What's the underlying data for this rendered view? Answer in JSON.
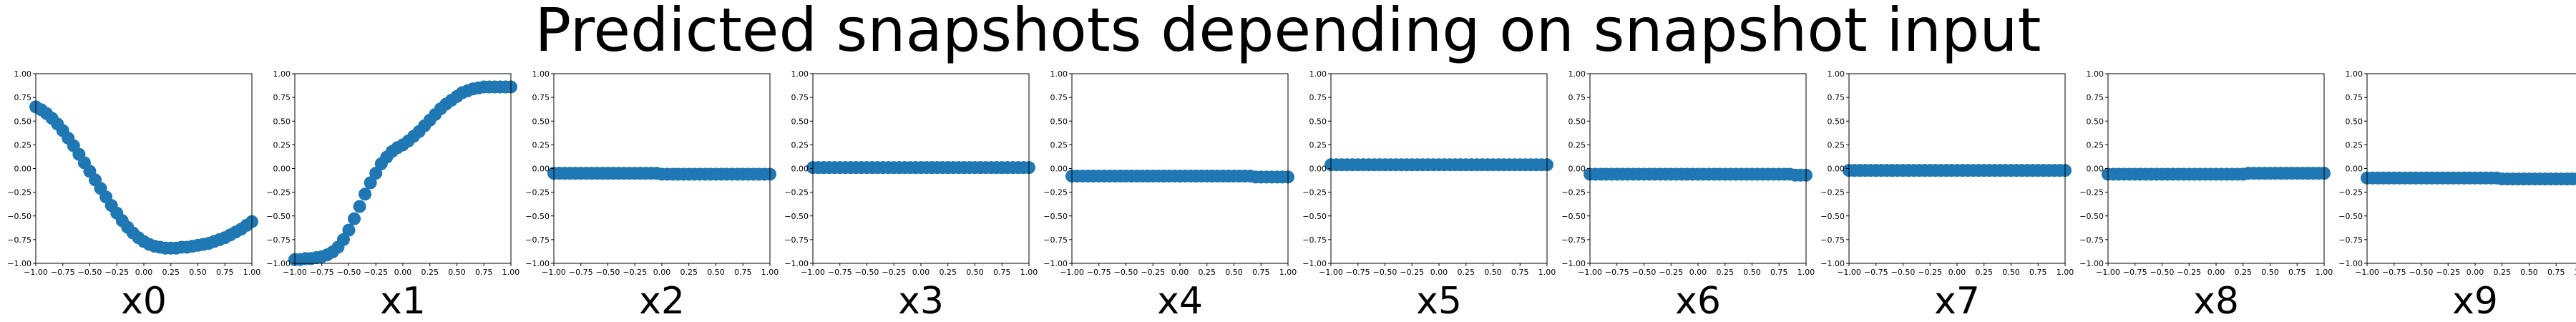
{
  "title": "Predicted snapshots depending on snapshot input",
  "chart_data": [
    {
      "type": "scatter",
      "xlabel": "x0",
      "xlim": [
        -1,
        1
      ],
      "ylim": [
        -1,
        1
      ],
      "marker_color": "#1f77b4",
      "x": [
        -1.0,
        -0.95,
        -0.9,
        -0.85,
        -0.8,
        -0.75,
        -0.7,
        -0.65,
        -0.6,
        -0.55,
        -0.5,
        -0.45,
        -0.4,
        -0.35,
        -0.3,
        -0.25,
        -0.2,
        -0.15,
        -0.1,
        -0.05,
        0.0,
        0.05,
        0.1,
        0.15,
        0.2,
        0.25,
        0.3,
        0.35,
        0.4,
        0.45,
        0.5,
        0.55,
        0.6,
        0.65,
        0.7,
        0.75,
        0.8,
        0.85,
        0.9,
        0.95,
        1.0
      ],
      "y": [
        0.65,
        0.62,
        0.58,
        0.53,
        0.47,
        0.4,
        0.32,
        0.24,
        0.15,
        0.06,
        -0.03,
        -0.12,
        -0.21,
        -0.3,
        -0.39,
        -0.47,
        -0.55,
        -0.62,
        -0.68,
        -0.73,
        -0.77,
        -0.8,
        -0.82,
        -0.83,
        -0.84,
        -0.84,
        -0.84,
        -0.83,
        -0.83,
        -0.82,
        -0.81,
        -0.8,
        -0.79,
        -0.77,
        -0.75,
        -0.73,
        -0.7,
        -0.67,
        -0.64,
        -0.6,
        -0.56
      ]
    },
    {
      "type": "scatter",
      "xlabel": "x1",
      "xlim": [
        -1,
        1
      ],
      "ylim": [
        -1,
        1
      ],
      "marker_color": "#1f77b4",
      "x": [
        -1.0,
        -0.95,
        -0.9,
        -0.85,
        -0.8,
        -0.75,
        -0.7,
        -0.65,
        -0.6,
        -0.55,
        -0.5,
        -0.45,
        -0.4,
        -0.35,
        -0.3,
        -0.25,
        -0.2,
        -0.15,
        -0.1,
        -0.05,
        0.0,
        0.05,
        0.1,
        0.15,
        0.2,
        0.25,
        0.3,
        0.35,
        0.4,
        0.45,
        0.5,
        0.55,
        0.6,
        0.65,
        0.7,
        0.75,
        0.8,
        0.85,
        0.9,
        0.95,
        1.0
      ],
      "y": [
        -0.96,
        -0.96,
        -0.95,
        -0.95,
        -0.94,
        -0.93,
        -0.91,
        -0.88,
        -0.83,
        -0.75,
        -0.65,
        -0.53,
        -0.4,
        -0.27,
        -0.15,
        -0.05,
        0.05,
        0.12,
        0.18,
        0.22,
        0.25,
        0.29,
        0.34,
        0.39,
        0.45,
        0.51,
        0.57,
        0.63,
        0.68,
        0.72,
        0.76,
        0.8,
        0.82,
        0.84,
        0.85,
        0.86,
        0.86,
        0.86,
        0.86,
        0.86,
        0.86
      ]
    },
    {
      "type": "scatter",
      "xlabel": "x2",
      "xlim": [
        -1,
        1
      ],
      "ylim": [
        -1,
        1
      ],
      "marker_color": "#1f77b4",
      "x": [
        -1.0,
        -0.95,
        -0.9,
        -0.85,
        -0.8,
        -0.75,
        -0.7,
        -0.65,
        -0.6,
        -0.55,
        -0.5,
        -0.45,
        -0.4,
        -0.35,
        -0.3,
        -0.25,
        -0.2,
        -0.15,
        -0.1,
        -0.05,
        0.0,
        0.05,
        0.1,
        0.15,
        0.2,
        0.25,
        0.3,
        0.35,
        0.4,
        0.45,
        0.5,
        0.55,
        0.6,
        0.65,
        0.7,
        0.75,
        0.8,
        0.85,
        0.9,
        0.95,
        1.0
      ],
      "y": [
        -0.05,
        -0.05,
        -0.05,
        -0.05,
        -0.05,
        -0.05,
        -0.05,
        -0.05,
        -0.05,
        -0.05,
        -0.05,
        -0.05,
        -0.05,
        -0.05,
        -0.05,
        -0.05,
        -0.05,
        -0.05,
        -0.05,
        -0.05,
        -0.06,
        -0.06,
        -0.06,
        -0.06,
        -0.06,
        -0.06,
        -0.06,
        -0.06,
        -0.06,
        -0.06,
        -0.06,
        -0.06,
        -0.06,
        -0.06,
        -0.06,
        -0.06,
        -0.06,
        -0.06,
        -0.06,
        -0.06,
        -0.06
      ]
    },
    {
      "type": "scatter",
      "xlabel": "x3",
      "xlim": [
        -1,
        1
      ],
      "ylim": [
        -1,
        1
      ],
      "marker_color": "#1f77b4",
      "x": [
        -1.0,
        -0.95,
        -0.9,
        -0.85,
        -0.8,
        -0.75,
        -0.7,
        -0.65,
        -0.6,
        -0.55,
        -0.5,
        -0.45,
        -0.4,
        -0.35,
        -0.3,
        -0.25,
        -0.2,
        -0.15,
        -0.1,
        -0.05,
        0.0,
        0.05,
        0.1,
        0.15,
        0.2,
        0.25,
        0.3,
        0.35,
        0.4,
        0.45,
        0.5,
        0.55,
        0.6,
        0.65,
        0.7,
        0.75,
        0.8,
        0.85,
        0.9,
        0.95,
        1.0
      ],
      "y": [
        0.01,
        0.01,
        0.01,
        0.01,
        0.01,
        0.01,
        0.01,
        0.01,
        0.01,
        0.01,
        0.01,
        0.01,
        0.01,
        0.01,
        0.01,
        0.01,
        0.01,
        0.01,
        0.01,
        0.01,
        0.01,
        0.01,
        0.01,
        0.01,
        0.01,
        0.01,
        0.01,
        0.01,
        0.01,
        0.01,
        0.01,
        0.01,
        0.01,
        0.01,
        0.01,
        0.01,
        0.01,
        0.01,
        0.01,
        0.01,
        0.01
      ]
    },
    {
      "type": "scatter",
      "xlabel": "x4",
      "xlim": [
        -1,
        1
      ],
      "ylim": [
        -1,
        1
      ],
      "marker_color": "#1f77b4",
      "x": [
        -1.0,
        -0.95,
        -0.9,
        -0.85,
        -0.8,
        -0.75,
        -0.7,
        -0.65,
        -0.6,
        -0.55,
        -0.5,
        -0.45,
        -0.4,
        -0.35,
        -0.3,
        -0.25,
        -0.2,
        -0.15,
        -0.1,
        -0.05,
        0.0,
        0.05,
        0.1,
        0.15,
        0.2,
        0.25,
        0.3,
        0.35,
        0.4,
        0.45,
        0.5,
        0.55,
        0.6,
        0.65,
        0.7,
        0.75,
        0.8,
        0.85,
        0.9,
        0.95,
        1.0
      ],
      "y": [
        -0.08,
        -0.08,
        -0.08,
        -0.08,
        -0.08,
        -0.08,
        -0.08,
        -0.08,
        -0.08,
        -0.08,
        -0.08,
        -0.08,
        -0.08,
        -0.08,
        -0.08,
        -0.08,
        -0.08,
        -0.08,
        -0.08,
        -0.08,
        -0.08,
        -0.08,
        -0.08,
        -0.08,
        -0.08,
        -0.08,
        -0.08,
        -0.08,
        -0.08,
        -0.08,
        -0.08,
        -0.08,
        -0.08,
        -0.08,
        -0.09,
        -0.09,
        -0.09,
        -0.09,
        -0.09,
        -0.09,
        -0.09
      ]
    },
    {
      "type": "scatter",
      "xlabel": "x5",
      "xlim": [
        -1,
        1
      ],
      "ylim": [
        -1,
        1
      ],
      "marker_color": "#1f77b4",
      "x": [
        -1.0,
        -0.95,
        -0.9,
        -0.85,
        -0.8,
        -0.75,
        -0.7,
        -0.65,
        -0.6,
        -0.55,
        -0.5,
        -0.45,
        -0.4,
        -0.35,
        -0.3,
        -0.25,
        -0.2,
        -0.15,
        -0.1,
        -0.05,
        0.0,
        0.05,
        0.1,
        0.15,
        0.2,
        0.25,
        0.3,
        0.35,
        0.4,
        0.45,
        0.5,
        0.55,
        0.6,
        0.65,
        0.7,
        0.75,
        0.8,
        0.85,
        0.9,
        0.95,
        1.0
      ],
      "y": [
        0.04,
        0.04,
        0.04,
        0.04,
        0.04,
        0.04,
        0.04,
        0.04,
        0.04,
        0.04,
        0.04,
        0.04,
        0.04,
        0.04,
        0.04,
        0.04,
        0.04,
        0.04,
        0.04,
        0.04,
        0.04,
        0.04,
        0.04,
        0.04,
        0.04,
        0.04,
        0.04,
        0.04,
        0.04,
        0.04,
        0.04,
        0.04,
        0.04,
        0.04,
        0.04,
        0.04,
        0.04,
        0.04,
        0.04,
        0.04,
        0.04
      ]
    },
    {
      "type": "scatter",
      "xlabel": "x6",
      "xlim": [
        -1,
        1
      ],
      "ylim": [
        -1,
        1
      ],
      "marker_color": "#1f77b4",
      "x": [
        -1.0,
        -0.95,
        -0.9,
        -0.85,
        -0.8,
        -0.75,
        -0.7,
        -0.65,
        -0.6,
        -0.55,
        -0.5,
        -0.45,
        -0.4,
        -0.35,
        -0.3,
        -0.25,
        -0.2,
        -0.15,
        -0.1,
        -0.05,
        0.0,
        0.05,
        0.1,
        0.15,
        0.2,
        0.25,
        0.3,
        0.35,
        0.4,
        0.45,
        0.5,
        0.55,
        0.6,
        0.65,
        0.7,
        0.75,
        0.8,
        0.85,
        0.9,
        0.95,
        1.0
      ],
      "y": [
        -0.06,
        -0.06,
        -0.06,
        -0.06,
        -0.06,
        -0.06,
        -0.06,
        -0.06,
        -0.06,
        -0.06,
        -0.06,
        -0.06,
        -0.06,
        -0.06,
        -0.06,
        -0.06,
        -0.06,
        -0.06,
        -0.06,
        -0.06,
        -0.06,
        -0.06,
        -0.06,
        -0.06,
        -0.06,
        -0.06,
        -0.06,
        -0.06,
        -0.06,
        -0.06,
        -0.06,
        -0.06,
        -0.06,
        -0.06,
        -0.06,
        -0.06,
        -0.06,
        -0.06,
        -0.07,
        -0.07,
        -0.07
      ]
    },
    {
      "type": "scatter",
      "xlabel": "x7",
      "xlim": [
        -1,
        1
      ],
      "ylim": [
        -1,
        1
      ],
      "marker_color": "#1f77b4",
      "x": [
        -1.0,
        -0.95,
        -0.9,
        -0.85,
        -0.8,
        -0.75,
        -0.7,
        -0.65,
        -0.6,
        -0.55,
        -0.5,
        -0.45,
        -0.4,
        -0.35,
        -0.3,
        -0.25,
        -0.2,
        -0.15,
        -0.1,
        -0.05,
        0.0,
        0.05,
        0.1,
        0.15,
        0.2,
        0.25,
        0.3,
        0.35,
        0.4,
        0.45,
        0.5,
        0.55,
        0.6,
        0.65,
        0.7,
        0.75,
        0.8,
        0.85,
        0.9,
        0.95,
        1.0
      ],
      "y": [
        -0.02,
        -0.02,
        -0.02,
        -0.02,
        -0.02,
        -0.02,
        -0.02,
        -0.02,
        -0.02,
        -0.02,
        -0.02,
        -0.02,
        -0.02,
        -0.02,
        -0.02,
        -0.02,
        -0.02,
        -0.02,
        -0.02,
        -0.02,
        -0.02,
        -0.02,
        -0.02,
        -0.02,
        -0.02,
        -0.02,
        -0.02,
        -0.02,
        -0.02,
        -0.02,
        -0.02,
        -0.02,
        -0.02,
        -0.02,
        -0.02,
        -0.02,
        -0.02,
        -0.02,
        -0.02,
        -0.02,
        -0.02
      ]
    },
    {
      "type": "scatter",
      "xlabel": "x8",
      "xlim": [
        -1,
        1
      ],
      "ylim": [
        -1,
        1
      ],
      "marker_color": "#1f77b4",
      "x": [
        -1.0,
        -0.95,
        -0.9,
        -0.85,
        -0.8,
        -0.75,
        -0.7,
        -0.65,
        -0.6,
        -0.55,
        -0.5,
        -0.45,
        -0.4,
        -0.35,
        -0.3,
        -0.25,
        -0.2,
        -0.15,
        -0.1,
        -0.05,
        0.0,
        0.05,
        0.1,
        0.15,
        0.2,
        0.25,
        0.3,
        0.35,
        0.4,
        0.45,
        0.5,
        0.55,
        0.6,
        0.65,
        0.7,
        0.75,
        0.8,
        0.85,
        0.9,
        0.95,
        1.0
      ],
      "y": [
        -0.06,
        -0.06,
        -0.06,
        -0.06,
        -0.06,
        -0.06,
        -0.06,
        -0.06,
        -0.06,
        -0.06,
        -0.06,
        -0.06,
        -0.06,
        -0.06,
        -0.06,
        -0.06,
        -0.06,
        -0.06,
        -0.06,
        -0.06,
        -0.06,
        -0.06,
        -0.06,
        -0.06,
        -0.06,
        -0.06,
        -0.05,
        -0.05,
        -0.05,
        -0.05,
        -0.05,
        -0.05,
        -0.05,
        -0.05,
        -0.05,
        -0.05,
        -0.05,
        -0.05,
        -0.05,
        -0.05,
        -0.05
      ]
    },
    {
      "type": "scatter",
      "xlabel": "x9",
      "xlim": [
        -1,
        1
      ],
      "ylim": [
        -1,
        1
      ],
      "marker_color": "#1f77b4",
      "x": [
        -1.0,
        -0.95,
        -0.9,
        -0.85,
        -0.8,
        -0.75,
        -0.7,
        -0.65,
        -0.6,
        -0.55,
        -0.5,
        -0.45,
        -0.4,
        -0.35,
        -0.3,
        -0.25,
        -0.2,
        -0.15,
        -0.1,
        -0.05,
        0.0,
        0.05,
        0.1,
        0.15,
        0.2,
        0.25,
        0.3,
        0.35,
        0.4,
        0.45,
        0.5,
        0.55,
        0.6,
        0.65,
        0.7,
        0.75,
        0.8,
        0.85,
        0.9,
        0.95,
        1.0
      ],
      "y": [
        -0.1,
        -0.1,
        -0.1,
        -0.1,
        -0.1,
        -0.1,
        -0.1,
        -0.1,
        -0.1,
        -0.1,
        -0.1,
        -0.1,
        -0.1,
        -0.1,
        -0.1,
        -0.1,
        -0.1,
        -0.1,
        -0.1,
        -0.1,
        -0.1,
        -0.1,
        -0.1,
        -0.1,
        -0.1,
        -0.11,
        -0.11,
        -0.11,
        -0.11,
        -0.11,
        -0.11,
        -0.11,
        -0.11,
        -0.11,
        -0.11,
        -0.11,
        -0.11,
        -0.11,
        -0.11,
        -0.11,
        -0.11
      ]
    }
  ]
}
